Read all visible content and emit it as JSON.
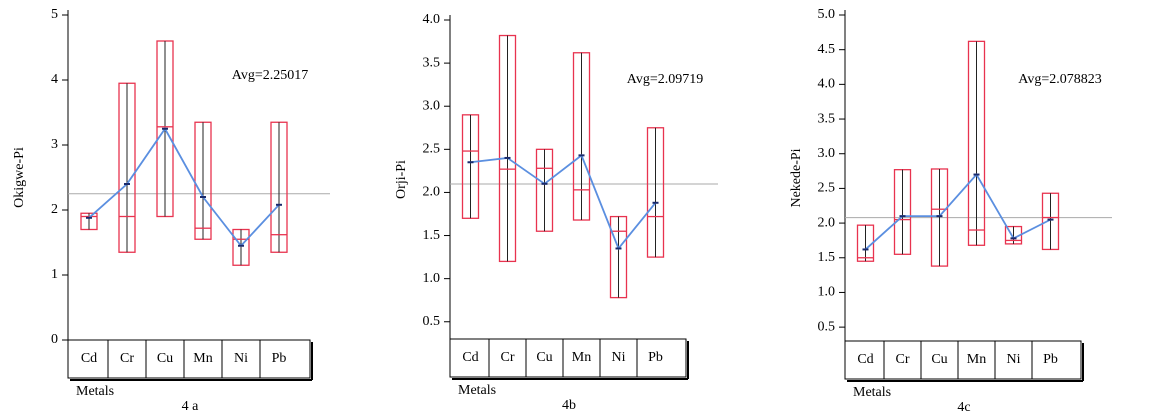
{
  "chart_data": [
    {
      "type": "box",
      "title": "4 a",
      "ylabel": "Okigwe-Pi",
      "xlabel": "Metals",
      "categories": [
        "Cd",
        "Cr",
        "Cu",
        "Mn",
        "Ni",
        "Pb"
      ],
      "low": [
        1.7,
        1.35,
        1.9,
        1.55,
        1.15,
        1.35
      ],
      "high": [
        1.95,
        3.95,
        4.6,
        3.35,
        1.7,
        3.35
      ],
      "median": [
        1.9,
        1.9,
        3.28,
        1.72,
        1.55,
        1.62
      ],
      "mean": [
        1.88,
        2.4,
        3.25,
        2.2,
        1.45,
        2.08
      ],
      "avg": {
        "value": 2.25017,
        "label": "Avg=2.25017"
      },
      "ylim": [
        0,
        5
      ],
      "yticks": [
        0,
        1,
        2,
        3,
        4,
        5
      ],
      "box_color": "#e8334f",
      "line_color": "#5b8fe0",
      "avg_color": "#aaaaaa"
    },
    {
      "type": "box",
      "title": "4b",
      "ylabel": "Orji-Pi",
      "xlabel": "Metals",
      "categories": [
        "Cd",
        "Cr",
        "Cu",
        "Mn",
        "Ni",
        "Pb"
      ],
      "low": [
        1.7,
        1.2,
        1.55,
        1.68,
        0.78,
        1.25
      ],
      "high": [
        2.9,
        3.82,
        2.5,
        3.62,
        1.72,
        2.75
      ],
      "median": [
        2.48,
        2.27,
        2.28,
        2.03,
        1.55,
        1.72
      ],
      "mean": [
        2.35,
        2.4,
        2.1,
        2.43,
        1.35,
        1.88
      ],
      "avg": {
        "value": 2.09719,
        "label": "Avg=2.09719"
      },
      "ylim": [
        0.3,
        4.0
      ],
      "yticks": [
        0.5,
        {
          "value": 1,
          "label": "1.0"
        },
        1.5,
        {
          "value": 2,
          "label": "2.0"
        },
        2.5,
        {
          "value": 3,
          "label": "3.0"
        },
        3.5,
        {
          "value": 4,
          "label": "4.0"
        }
      ],
      "box_color": "#e8334f",
      "line_color": "#5b8fe0",
      "avg_color": "#aaaaaa"
    },
    {
      "type": "box",
      "title": "4c",
      "ylabel": "Nekede-Pi",
      "xlabel": "Metals",
      "categories": [
        "Cd",
        "Cr",
        "Cu",
        "Mn",
        "Ni",
        "Pb"
      ],
      "low": [
        1.45,
        1.55,
        1.38,
        1.68,
        1.7,
        1.62
      ],
      "high": [
        1.97,
        2.77,
        2.78,
        4.62,
        1.95,
        2.43
      ],
      "median": [
        1.5,
        2.05,
        2.2,
        1.9,
        1.75,
        2.08
      ],
      "mean": [
        1.62,
        2.1,
        2.1,
        2.7,
        1.78,
        2.05
      ],
      "avg": {
        "value": 2.078823,
        "label": "Avg=2.078823"
      },
      "ylim": [
        0.3,
        5.0
      ],
      "yticks": [
        0.5,
        {
          "value": 1,
          "label": "1.0"
        },
        1.5,
        {
          "value": 2,
          "label": "2.0"
        },
        2.5,
        {
          "value": 3,
          "label": "3.0"
        },
        3.5,
        {
          "value": 4,
          "label": "4.0"
        },
        4.5,
        {
          "value": 5,
          "label": "5.0"
        }
      ],
      "box_color": "#e8334f",
      "line_color": "#5b8fe0",
      "avg_color": "#aaaaaa"
    }
  ]
}
